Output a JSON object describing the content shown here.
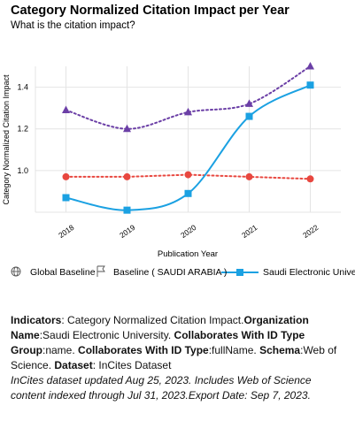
{
  "chart_data": {
    "type": "line",
    "title": "Category Normalized Citation Impact per Year",
    "subtitle": "What is the citation impact?",
    "x_label": "Publication Year",
    "y_label": "Category Normalized Citation Impact",
    "categories": [
      "2018",
      "2019",
      "2020",
      "2021",
      "2022"
    ],
    "ylim": [
      0.8,
      1.5
    ],
    "yticks": [
      {
        "value": 1,
        "label": "1.0"
      },
      1.2,
      1.4
    ],
    "grid": true,
    "series": [
      {
        "name": "Global Baseline",
        "color": "#e8473f",
        "marker": "circle",
        "dash": "dotted",
        "smooth": false,
        "values": [
          0.97,
          0.97,
          0.98,
          0.97,
          0.96
        ]
      },
      {
        "name": "Baseline ( SAUDI ARABIA )",
        "color": "#6b3fa6",
        "marker": "triangle",
        "dash": "dotted",
        "smooth": true,
        "values": [
          1.29,
          1.2,
          1.28,
          1.32,
          1.5
        ]
      },
      {
        "name": "Saudi Electronic University",
        "color": "#1ba1e2",
        "marker": "square",
        "dash": "solid",
        "smooth": true,
        "values": [
          0.87,
          0.81,
          0.89,
          1.26,
          1.41
        ]
      }
    ],
    "notes": [
      {
        "label": "Indicators",
        "text": ": Category Normalized Citation Impact."
      },
      {
        "label": "Organization Name",
        "text": ":Saudi Electronic University. "
      },
      {
        "label": "Collaborates With ID Type Group",
        "text": ":name. "
      },
      {
        "label": "Collaborates With ID Type",
        "text": ":fullName. "
      },
      {
        "label": "Schema",
        "text": ":Web of Science. "
      },
      {
        "label": "Dataset",
        "text": ": InCites Dataset"
      }
    ],
    "footnote": "InCites dataset updated Aug 25, 2023. Includes Web of Science content indexed through Jul 31, 2023.Export Date: Sep 7, 2023."
  }
}
